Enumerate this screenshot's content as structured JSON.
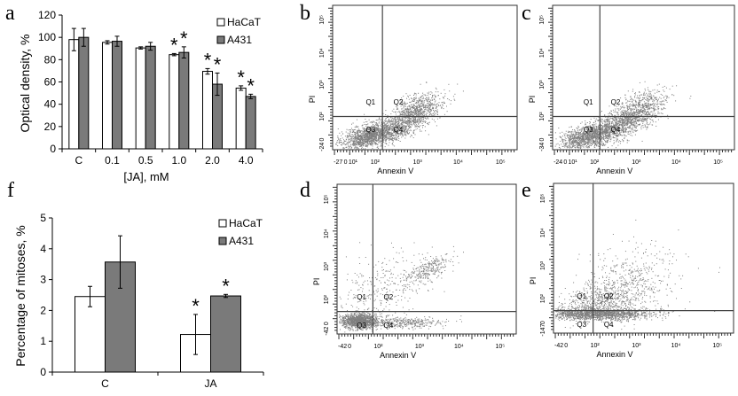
{
  "panel_labels": {
    "a": "a",
    "b": "b",
    "c": "c",
    "d": "d",
    "e": "e",
    "f": "f"
  },
  "chart_data": [
    {
      "id": "a",
      "type": "bar",
      "xlabel": "[JA], mM",
      "ylabel": "Optical density, %",
      "categories": [
        "C",
        "0.1",
        "0.5",
        "1.0",
        "2.0",
        "4.0"
      ],
      "ylim": [
        0,
        120
      ],
      "yticks": [
        "0",
        "20",
        "40",
        "60",
        "80",
        "100",
        "120"
      ],
      "grid": false,
      "legend_position": "top-right",
      "series": [
        {
          "name": "HaCaT",
          "color": "#ffffff",
          "values": [
            98,
            95.5,
            90.5,
            84.5,
            69.5,
            54.5
          ],
          "errors": [
            10,
            1.5,
            1,
            1,
            2.5,
            2
          ],
          "significant": [
            false,
            false,
            false,
            true,
            true,
            true
          ]
        },
        {
          "name": "A431",
          "color": "#7a7a7a",
          "values": [
            100,
            96.5,
            92,
            86.5,
            58,
            47
          ],
          "errors": [
            8,
            4.5,
            3.5,
            5,
            10,
            2
          ],
          "significant": [
            false,
            false,
            false,
            true,
            true,
            true
          ]
        }
      ],
      "significance_marker": "*"
    },
    {
      "id": "f",
      "type": "bar",
      "xlabel": "",
      "ylabel": "Percentage of mitoses, %",
      "categories": [
        "C",
        "JA"
      ],
      "ylim": [
        0,
        5
      ],
      "yticks": [
        "0",
        "1",
        "2",
        "3",
        "4",
        "5"
      ],
      "grid": false,
      "legend_position": "top-right",
      "series": [
        {
          "name": "HaCaT",
          "color": "#ffffff",
          "values": [
            2.45,
            1.22
          ],
          "errors": [
            0.33,
            0.65
          ],
          "significant": [
            false,
            true
          ]
        },
        {
          "name": "A431",
          "color": "#7a7a7a",
          "values": [
            3.57,
            2.47
          ],
          "errors": [
            0.85,
            0.05
          ],
          "significant": [
            false,
            true
          ]
        }
      ],
      "significance_marker": "*"
    },
    {
      "id": "b",
      "type": "scatter",
      "xlabel": "Annexin V",
      "ylabel": "PI",
      "x_scale": "log",
      "y_scale": "log",
      "xticks": [
        "-27",
        "0",
        "10¹",
        "10²",
        "10³",
        "10⁴",
        "10⁵"
      ],
      "yticks": [
        "-24",
        "0",
        "10²",
        "10³",
        "10⁴",
        "10⁵"
      ],
      "quadrants": [
        "Q1",
        "Q2",
        "Q3",
        "Q4"
      ]
    },
    {
      "id": "c",
      "type": "scatter",
      "xlabel": "Annexin V",
      "ylabel": "PI",
      "x_scale": "log",
      "y_scale": "log",
      "xticks": [
        "-24",
        "0",
        "10¹",
        "10²",
        "10³",
        "10⁴",
        "10⁵"
      ],
      "yticks": [
        "-34",
        "0",
        "10²",
        "10³",
        "10⁴",
        "10⁵"
      ],
      "quadrants": [
        "Q1",
        "Q2",
        "Q3",
        "Q4"
      ]
    },
    {
      "id": "d",
      "type": "scatter",
      "xlabel": "Annexin V",
      "ylabel": "PI",
      "x_scale": "log",
      "y_scale": "log",
      "xticks": [
        "-42",
        "0",
        "",
        "10²",
        "10³",
        "10⁴",
        "10⁵"
      ],
      "yticks": [
        "-42",
        "0",
        "10²",
        "10³",
        "10⁴",
        "10⁵"
      ],
      "quadrants": [
        "Q1",
        "Q2",
        "Q3",
        "Q4"
      ]
    },
    {
      "id": "e",
      "type": "scatter",
      "xlabel": "Annexin V",
      "ylabel": "PI",
      "x_scale": "log",
      "y_scale": "log",
      "xticks": [
        "-42",
        "0",
        "",
        "10²",
        "10³",
        "10⁴",
        "10⁵"
      ],
      "yticks": [
        "-147",
        "0",
        "10²",
        "10³",
        "10⁴",
        "10⁵"
      ],
      "quadrants": [
        "Q1",
        "Q2",
        "Q3",
        "Q4"
      ]
    }
  ],
  "colors": {
    "axis": "#000000",
    "dots": "#7f7f7f",
    "gate": "#444444"
  }
}
